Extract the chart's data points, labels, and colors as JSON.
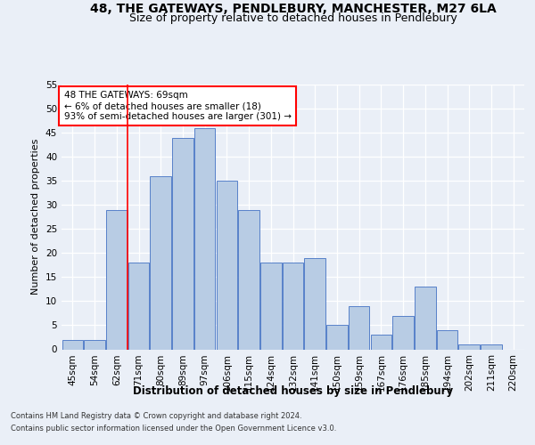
{
  "title1": "48, THE GATEWAYS, PENDLEBURY, MANCHESTER, M27 6LA",
  "title2": "Size of property relative to detached houses in Pendlebury",
  "xlabel": "Distribution of detached houses by size in Pendlebury",
  "ylabel": "Number of detached properties",
  "footer1": "Contains HM Land Registry data © Crown copyright and database right 2024.",
  "footer2": "Contains public sector information licensed under the Open Government Licence v3.0.",
  "annotation_line1": "48 THE GATEWAYS: 69sqm",
  "annotation_line2": "← 6% of detached houses are smaller (18)",
  "annotation_line3": "93% of semi-detached houses are larger (301) →",
  "bar_labels": [
    "45sqm",
    "54sqm",
    "62sqm",
    "71sqm",
    "80sqm",
    "89sqm",
    "97sqm",
    "106sqm",
    "115sqm",
    "124sqm",
    "132sqm",
    "141sqm",
    "150sqm",
    "159sqm",
    "167sqm",
    "176sqm",
    "185sqm",
    "194sqm",
    "202sqm",
    "211sqm",
    "220sqm"
  ],
  "bar_values": [
    2,
    2,
    29,
    18,
    36,
    44,
    46,
    35,
    29,
    18,
    18,
    19,
    5,
    9,
    3,
    7,
    13,
    4,
    1,
    1,
    0
  ],
  "bar_color": "#b8cce4",
  "bar_edge_color": "#4472c4",
  "red_line_x": 2.5,
  "ylim": [
    0,
    55
  ],
  "yticks": [
    0,
    5,
    10,
    15,
    20,
    25,
    30,
    35,
    40,
    45,
    50,
    55
  ],
  "bg_color": "#eaeff7",
  "plot_bg_color": "#eaeff7",
  "grid_color": "#ffffff",
  "title_fontsize": 10,
  "subtitle_fontsize": 9,
  "xlabel_fontsize": 8.5,
  "axis_label_fontsize": 8,
  "tick_fontsize": 7.5,
  "annotation_fontsize": 7.5,
  "footer_fontsize": 6
}
